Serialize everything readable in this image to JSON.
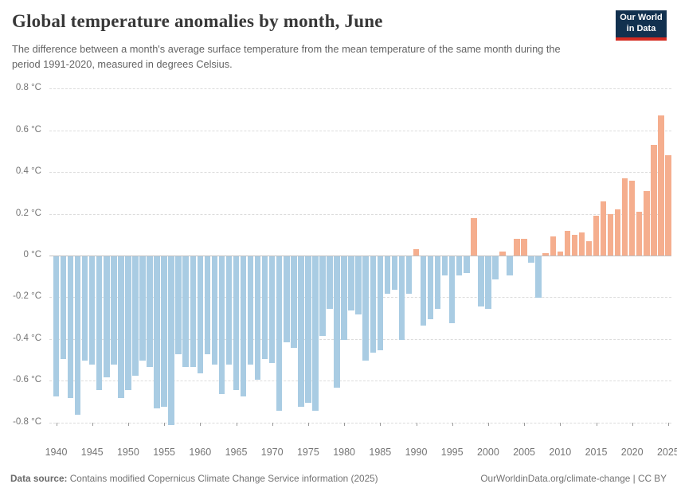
{
  "header": {
    "title": "Global temperature anomalies by month, June",
    "subtitle": "The difference between a month's average surface temperature from the mean temperature of the same month during the period 1991-2020, measured in degrees Celsius.",
    "logo": {
      "line1": "Our World",
      "line2": "in Data"
    }
  },
  "footer": {
    "source_label": "Data source:",
    "source_text": " Contains modified Copernicus Climate Change Service information (2025)",
    "right_text": "OurWorldinData.org/climate-change | CC BY"
  },
  "colors": {
    "bar_negative": "#a9cce3",
    "bar_positive": "#f5ae8e",
    "logo_bg": "#12314f",
    "logo_stripe": "#d42b21",
    "gridline": "#dcdcdc",
    "zero_line": "#c0c0c0",
    "axis_text": "#757575"
  },
  "chart_data": {
    "type": "bar",
    "title": "Global temperature anomalies by month, June",
    "unit": "°C",
    "ylim": [
      -0.8,
      0.8
    ],
    "grid": true,
    "yticks": [
      0.8,
      0.6,
      0.4,
      0.2,
      0,
      -0.2,
      -0.4,
      -0.6,
      -0.8
    ],
    "ytick_labels": [
      "0.8 °C",
      "0.6 °C",
      "0.4 °C",
      "0.2 °C",
      "0 °C",
      "-0.2 °C",
      "-0.4 °C",
      "-0.6 °C",
      "-0.8 °C"
    ],
    "xtick_labels": [
      "1940",
      "1945",
      "1950",
      "1955",
      "1960",
      "1965",
      "1970",
      "1975",
      "1980",
      "1985",
      "1990",
      "1995",
      "2000",
      "2005",
      "2010",
      "2015",
      "2020",
      "2025"
    ],
    "year_start": 1940,
    "year_end": 2025,
    "values": [
      -0.67,
      -0.49,
      -0.68,
      -0.76,
      -0.5,
      -0.52,
      -0.64,
      -0.58,
      -0.52,
      -0.68,
      -0.64,
      -0.57,
      -0.5,
      -0.53,
      -0.73,
      -0.72,
      -0.81,
      -0.47,
      -0.53,
      -0.53,
      -0.56,
      -0.47,
      -0.52,
      -0.66,
      -0.52,
      -0.64,
      -0.67,
      -0.52,
      -0.59,
      -0.49,
      -0.51,
      -0.74,
      -0.41,
      -0.44,
      -0.72,
      -0.7,
      -0.74,
      -0.38,
      -0.25,
      -0.63,
      -0.4,
      -0.26,
      -0.28,
      -0.5,
      -0.46,
      -0.45,
      -0.18,
      -0.16,
      -0.4,
      -0.18,
      0.03,
      -0.33,
      -0.3,
      -0.25,
      -0.09,
      -0.32,
      -0.09,
      -0.08,
      0.18,
      -0.24,
      -0.25,
      -0.11,
      0.02,
      -0.09,
      0.08,
      0.08,
      -0.03,
      -0.2,
      0.01,
      0.09,
      0.02,
      0.12,
      0.1,
      0.11,
      0.07,
      0.19,
      0.26,
      0.2,
      0.22,
      0.37,
      0.36,
      0.21,
      0.31,
      0.53,
      0.67,
      0.48
    ]
  }
}
